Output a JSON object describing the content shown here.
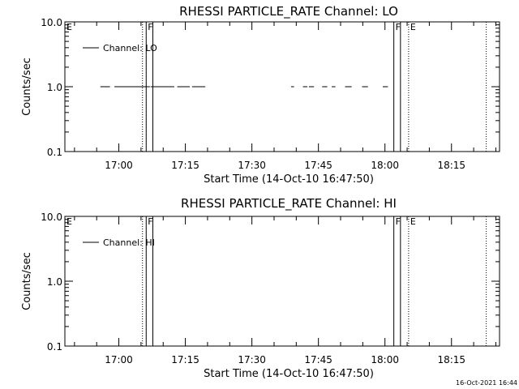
{
  "chart_data": [
    {
      "type": "line",
      "title": "RHESSI PARTICLE_RATE Channel: LO",
      "xlabel": "Start Time (14-Oct-10 16:47:50)",
      "ylabel": "Counts/sec",
      "yscale": "log",
      "ylim": [
        0.1,
        10.0
      ],
      "yticks": [
        "0.1",
        "1.0",
        "10.0"
      ],
      "xlim": [
        "16:47:50",
        "18:25:50"
      ],
      "xticks": [
        "17:00",
        "17:15",
        "17:30",
        "17:45",
        "18:00",
        "18:15"
      ],
      "legend": {
        "position": "top-left",
        "entries": [
          "Channel: LO"
        ]
      },
      "series": [
        {
          "name": "Channel: LO",
          "segments": [
            {
              "x": [
                "16:55:50",
                "16:58:00"
              ],
              "y": 1.0
            },
            {
              "x": [
                "16:59:00",
                "17:07:00"
              ],
              "y": 1.0
            },
            {
              "x": [
                "17:07:10",
                "17:12:30"
              ],
              "y": 1.0
            },
            {
              "x": [
                "17:13:10",
                "17:16:00"
              ],
              "y": 1.0
            },
            {
              "x": [
                "17:16:30",
                "17:19:30"
              ],
              "y": 1.0
            },
            {
              "x": [
                "17:38:50",
                "17:39:30"
              ],
              "y": 1.0
            },
            {
              "x": [
                "17:41:30",
                "17:42:30"
              ],
              "y": 1.0
            },
            {
              "x": [
                "17:42:50",
                "17:44:00"
              ],
              "y": 1.0
            },
            {
              "x": [
                "17:45:50",
                "17:47:00"
              ],
              "y": 1.0
            },
            {
              "x": [
                "17:48:00",
                "17:48:50"
              ],
              "y": 1.0
            },
            {
              "x": [
                "17:51:00",
                "17:52:30"
              ],
              "y": 1.0
            },
            {
              "x": [
                "17:54:50",
                "17:56:10"
              ],
              "y": 1.0
            },
            {
              "x": [
                "17:59:30",
                "18:00:40"
              ],
              "y": 1.0
            }
          ]
        }
      ],
      "markers": [
        {
          "label": "E",
          "time": "16:47:50",
          "style": "dotted"
        },
        {
          "label": "",
          "time": "17:05:20",
          "style": "dotted"
        },
        {
          "label": "F",
          "time": "17:06:10",
          "style": "solid"
        },
        {
          "label": "",
          "time": "17:07:40",
          "style": "solid"
        },
        {
          "label": "F",
          "time": "18:02:00",
          "style": "solid"
        },
        {
          "label": "",
          "time": "18:03:30",
          "style": "solid"
        },
        {
          "label": "E",
          "time": "18:05:20",
          "style": "dotted"
        },
        {
          "label": "",
          "time": "18:22:50",
          "style": "dotted"
        }
      ]
    },
    {
      "type": "line",
      "title": "RHESSI PARTICLE_RATE Channel: HI",
      "xlabel": "Start Time (14-Oct-10 16:47:50)",
      "ylabel": "Counts/sec",
      "yscale": "log",
      "ylim": [
        0.1,
        10.0
      ],
      "yticks": [
        "0.1",
        "1.0",
        "10.0"
      ],
      "xlim": [
        "16:47:50",
        "18:25:50"
      ],
      "xticks": [
        "17:00",
        "17:15",
        "17:30",
        "17:45",
        "18:00",
        "18:15"
      ],
      "legend": {
        "position": "top-left",
        "entries": [
          "Channel: HI"
        ]
      },
      "series": [
        {
          "name": "Channel: HI",
          "segments": []
        }
      ],
      "markers": [
        {
          "label": "E",
          "time": "16:47:50",
          "style": "dotted"
        },
        {
          "label": "",
          "time": "17:05:20",
          "style": "dotted"
        },
        {
          "label": "F",
          "time": "17:06:10",
          "style": "solid"
        },
        {
          "label": "",
          "time": "17:07:40",
          "style": "solid"
        },
        {
          "label": "F",
          "time": "18:02:00",
          "style": "solid"
        },
        {
          "label": "",
          "time": "18:03:30",
          "style": "solid"
        },
        {
          "label": "E",
          "time": "18:05:20",
          "style": "dotted"
        },
        {
          "label": "",
          "time": "18:22:50",
          "style": "dotted"
        }
      ]
    }
  ],
  "footer": {
    "timestamp": "16-Oct-2021 16:44"
  }
}
